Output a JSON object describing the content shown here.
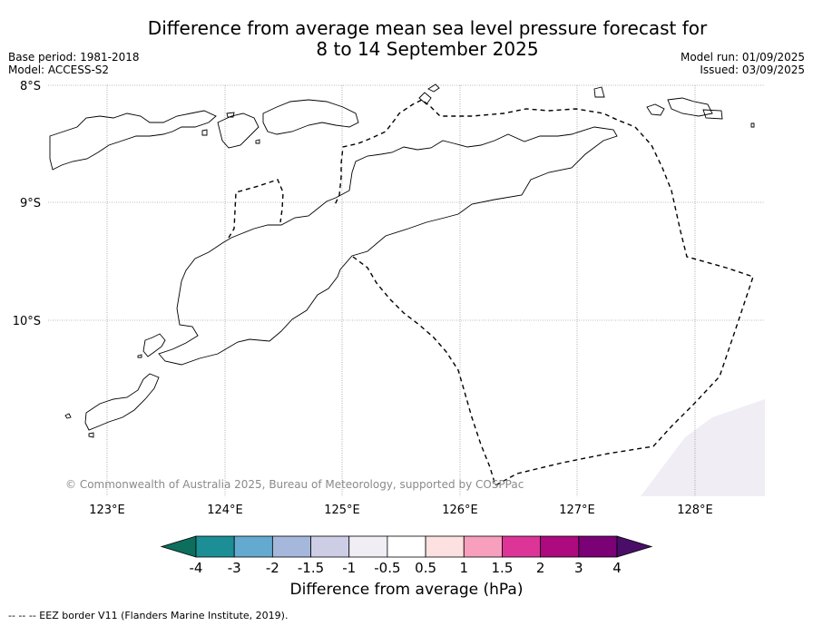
{
  "title_line1": "Difference from average mean sea level pressure forecast for",
  "title_line2": "8 to 14 September 2025",
  "base_period": "Base period: 1981-2018",
  "model": "Model: ACCESS-S2",
  "model_run": "Model run: 01/09/2025",
  "issued": "Issued: 03/09/2025",
  "lat_labels": [
    "8°S",
    "9°S",
    "10°S"
  ],
  "lon_labels": [
    "123°E",
    "124°E",
    "125°E",
    "126°E",
    "127°E",
    "128°E"
  ],
  "copyright": "© Commonwealth of Australia 2025, Bureau of Meteorology, supported by COSPPac",
  "colorbar": {
    "label": "Difference from average (hPa)",
    "ticks": [
      "-4",
      "-3",
      "-2",
      "-1.5",
      "-1",
      "-0.5",
      "0.5",
      "1",
      "1.5",
      "2",
      "3",
      "4"
    ],
    "colors": [
      "#1b8f95",
      "#64a9cf",
      "#a5b8db",
      "#cdcde6",
      "#f0edf5",
      "#ffffff",
      "#fde0e0",
      "#f79fbd",
      "#dc3597",
      "#ac0a7e",
      "#7b0177"
    ],
    "under_color": "#0c6e5c",
    "over_color": "#4a0e68"
  },
  "footer": "--  --  -- EEZ border V11 (Flanders Marine Institute, 2019).",
  "pressure_anomaly_shading_color": "#f0edf5"
}
